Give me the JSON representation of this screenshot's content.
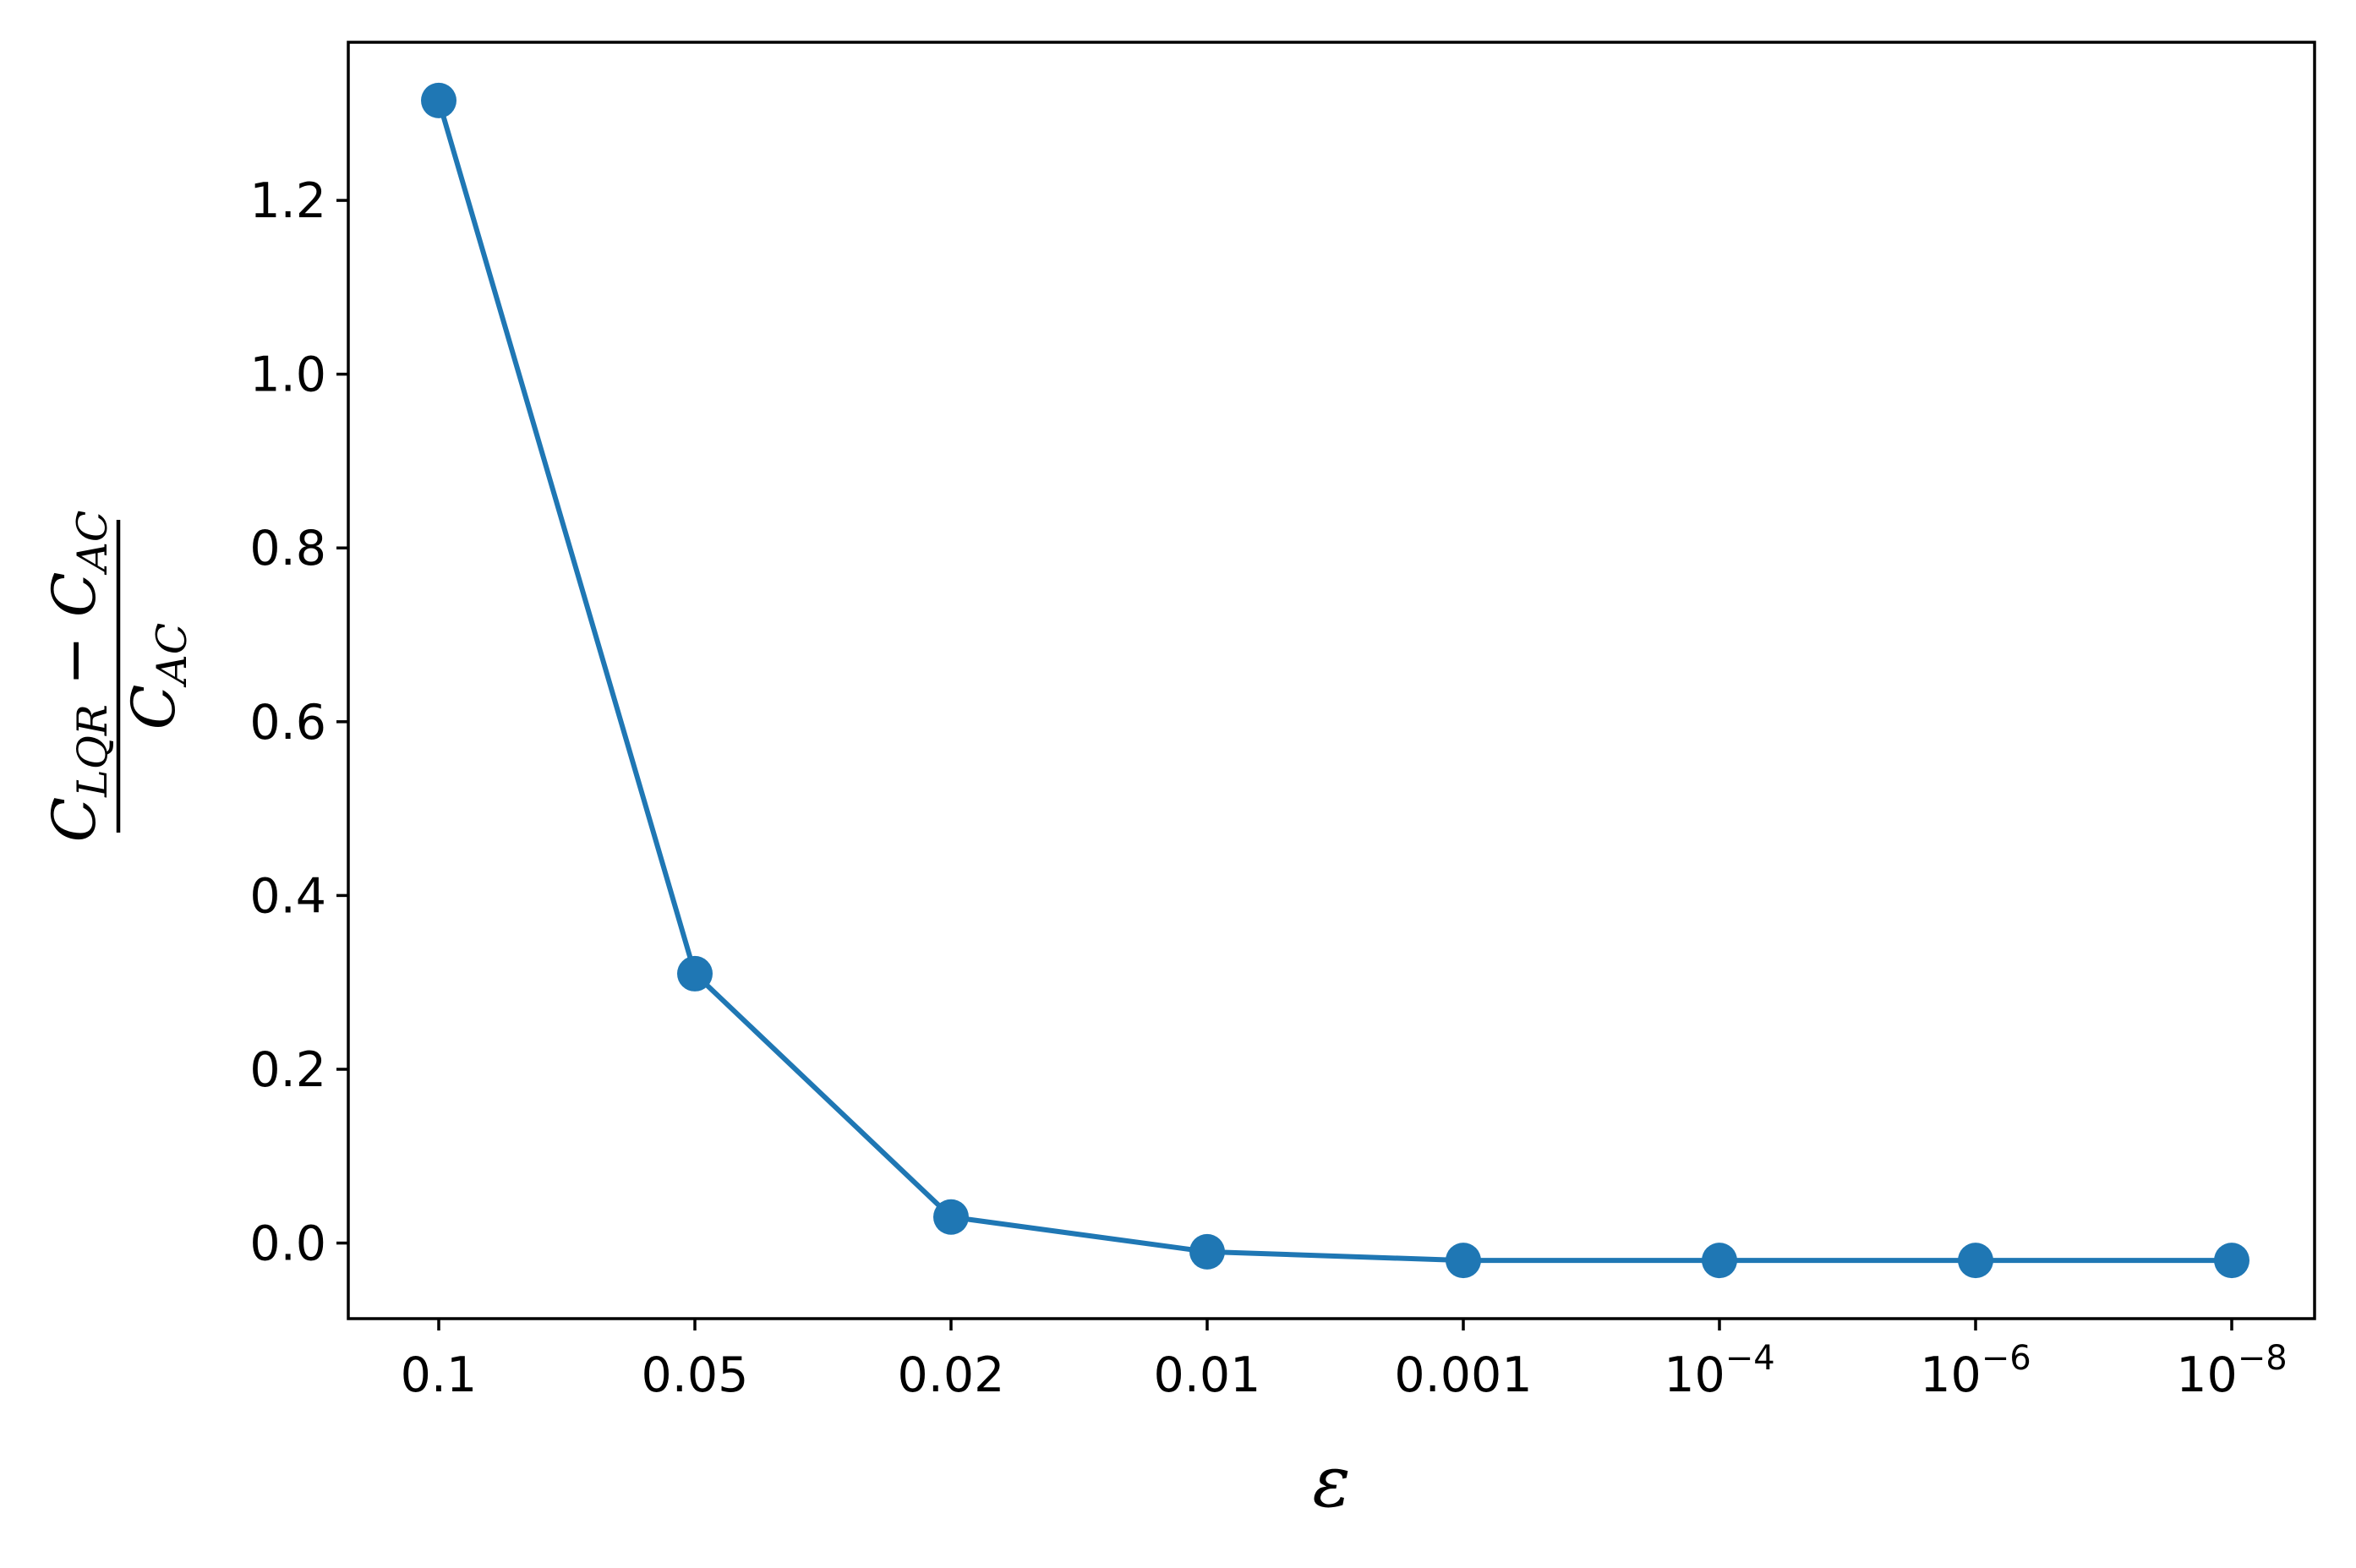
{
  "chart_data": {
    "type": "line",
    "markers": true,
    "x_categories": [
      {
        "base": "0.1",
        "exp": ""
      },
      {
        "base": "0.05",
        "exp": ""
      },
      {
        "base": "0.02",
        "exp": ""
      },
      {
        "base": "0.01",
        "exp": ""
      },
      {
        "base": "0.001",
        "exp": ""
      },
      {
        "base": "10",
        "exp": "−4"
      },
      {
        "base": "10",
        "exp": "−6"
      },
      {
        "base": "10",
        "exp": "−8"
      }
    ],
    "values": [
      1.315,
      0.31,
      0.03,
      -0.01,
      -0.02,
      -0.02,
      -0.02,
      -0.02
    ],
    "ylim": [
      -0.087,
      1.382
    ],
    "yticks": [
      "0.0",
      "0.2",
      "0.4",
      "0.6",
      "0.8",
      "1.0",
      "1.2"
    ],
    "xlabel": "ε",
    "ylabel": {
      "numerator": {
        "c1": "C",
        "s1": "LQR",
        "op": " − ",
        "c2": "C",
        "s2": "AC"
      },
      "denominator": {
        "c": "C",
        "s": "AC"
      }
    },
    "color": "#1f77b4",
    "grid": false,
    "legend": false
  }
}
